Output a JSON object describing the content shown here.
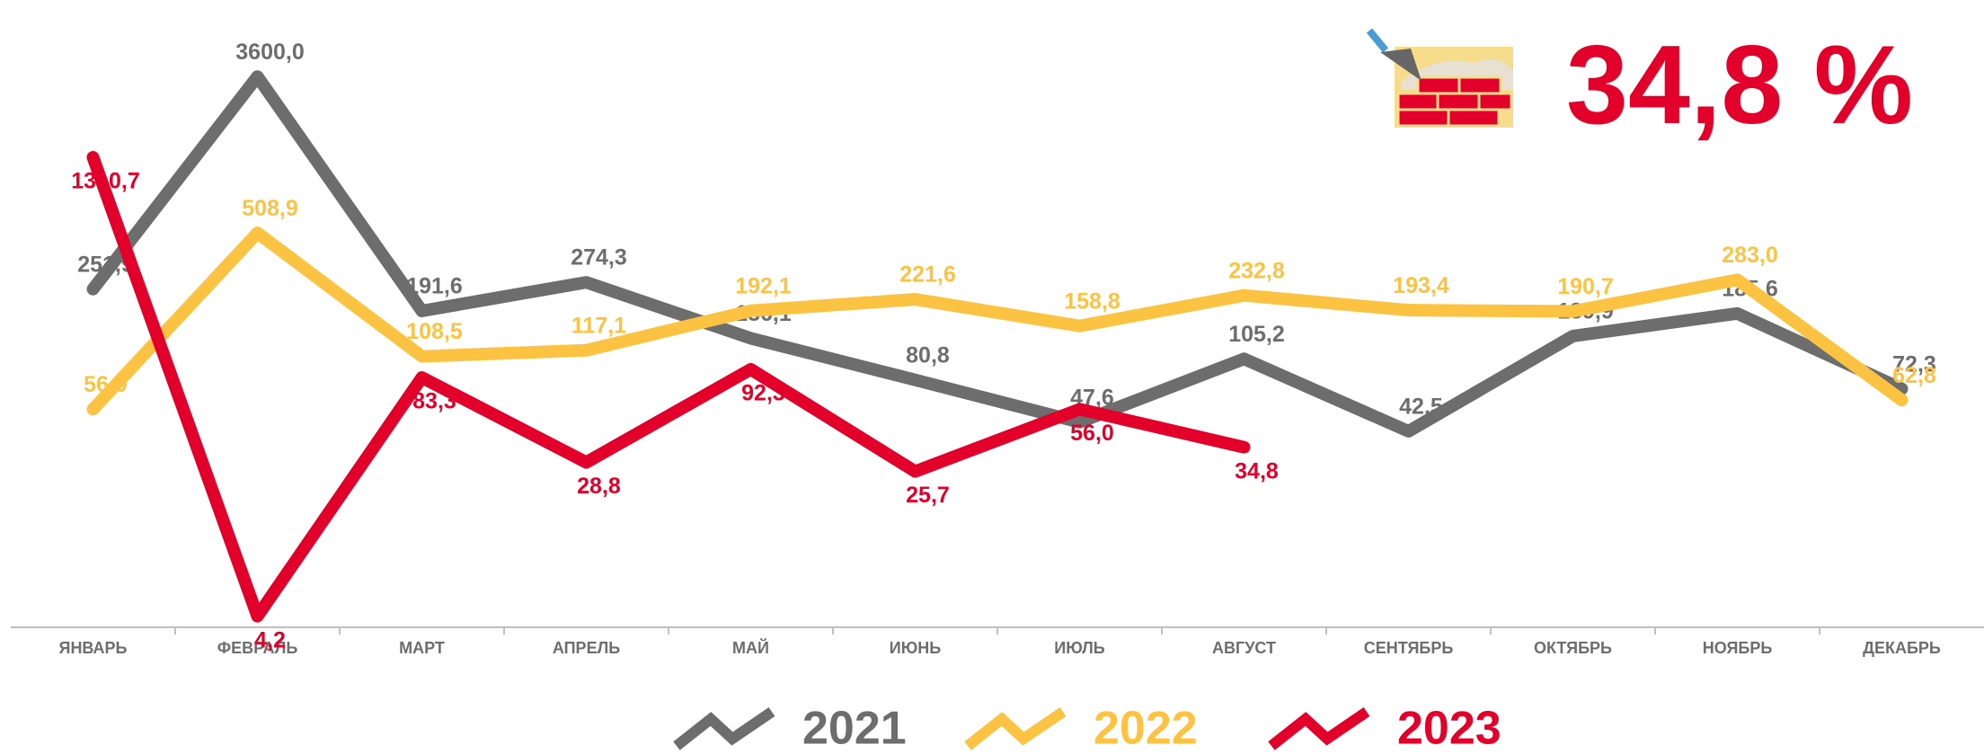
{
  "chart_data": {
    "type": "line",
    "headline": "34,8 %",
    "categories": [
      "ЯНВАРЬ",
      "ФЕВРАЛЬ",
      "МАРТ",
      "АПРЕЛЬ",
      "МАЙ",
      "ИЮНЬ",
      "ИЮЛЬ",
      "АВГУСТ",
      "СЕНТЯБРЬ",
      "ОКТЯБРЬ",
      "НОЯБРЬ",
      "ДЕКАБРЬ"
    ],
    "series": [
      {
        "name": "2021",
        "color": "#6d6d6d",
        "values": [
          251.9,
          3600,
          191.6,
          274.3,
          136.1,
          80.8,
          47.6,
          105.2,
          42.5,
          139.9,
          185.6,
          72.3
        ],
        "value_labels": [
          "251,9",
          "3600,0",
          "191,6",
          "274,3",
          "136,1",
          "80,8",
          "47,6",
          "105,2",
          "42,5",
          "139,9",
          "185,6",
          "72,3"
        ]
      },
      {
        "name": "2022",
        "color": "#fcc342",
        "values": [
          56.0,
          508.9,
          108.5,
          117.1,
          192.1,
          221.6,
          158.8,
          232.8,
          193.4,
          190.7,
          283.0,
          62.8
        ],
        "value_labels": [
          "56,0",
          "508,9",
          "108,5",
          "117,1",
          "192,1",
          "221,6",
          "158,8",
          "232,8",
          "193,4",
          "190,7",
          "283,0",
          "62,8"
        ]
      },
      {
        "name": "2023",
        "color": "#e2002a",
        "values": [
          1310.7,
          4.2,
          83.3,
          28.8,
          92.3,
          25.7,
          56.0,
          34.8,
          null,
          null,
          null,
          null
        ],
        "value_labels": [
          "1310,7",
          "4,2",
          "83,3",
          "28,8",
          "92,3",
          "25,7",
          "56,0",
          "34,8",
          null,
          null,
          null,
          null
        ]
      }
    ],
    "log_scale": true,
    "ylim": [
      4,
      5000
    ],
    "grid": false
  }
}
